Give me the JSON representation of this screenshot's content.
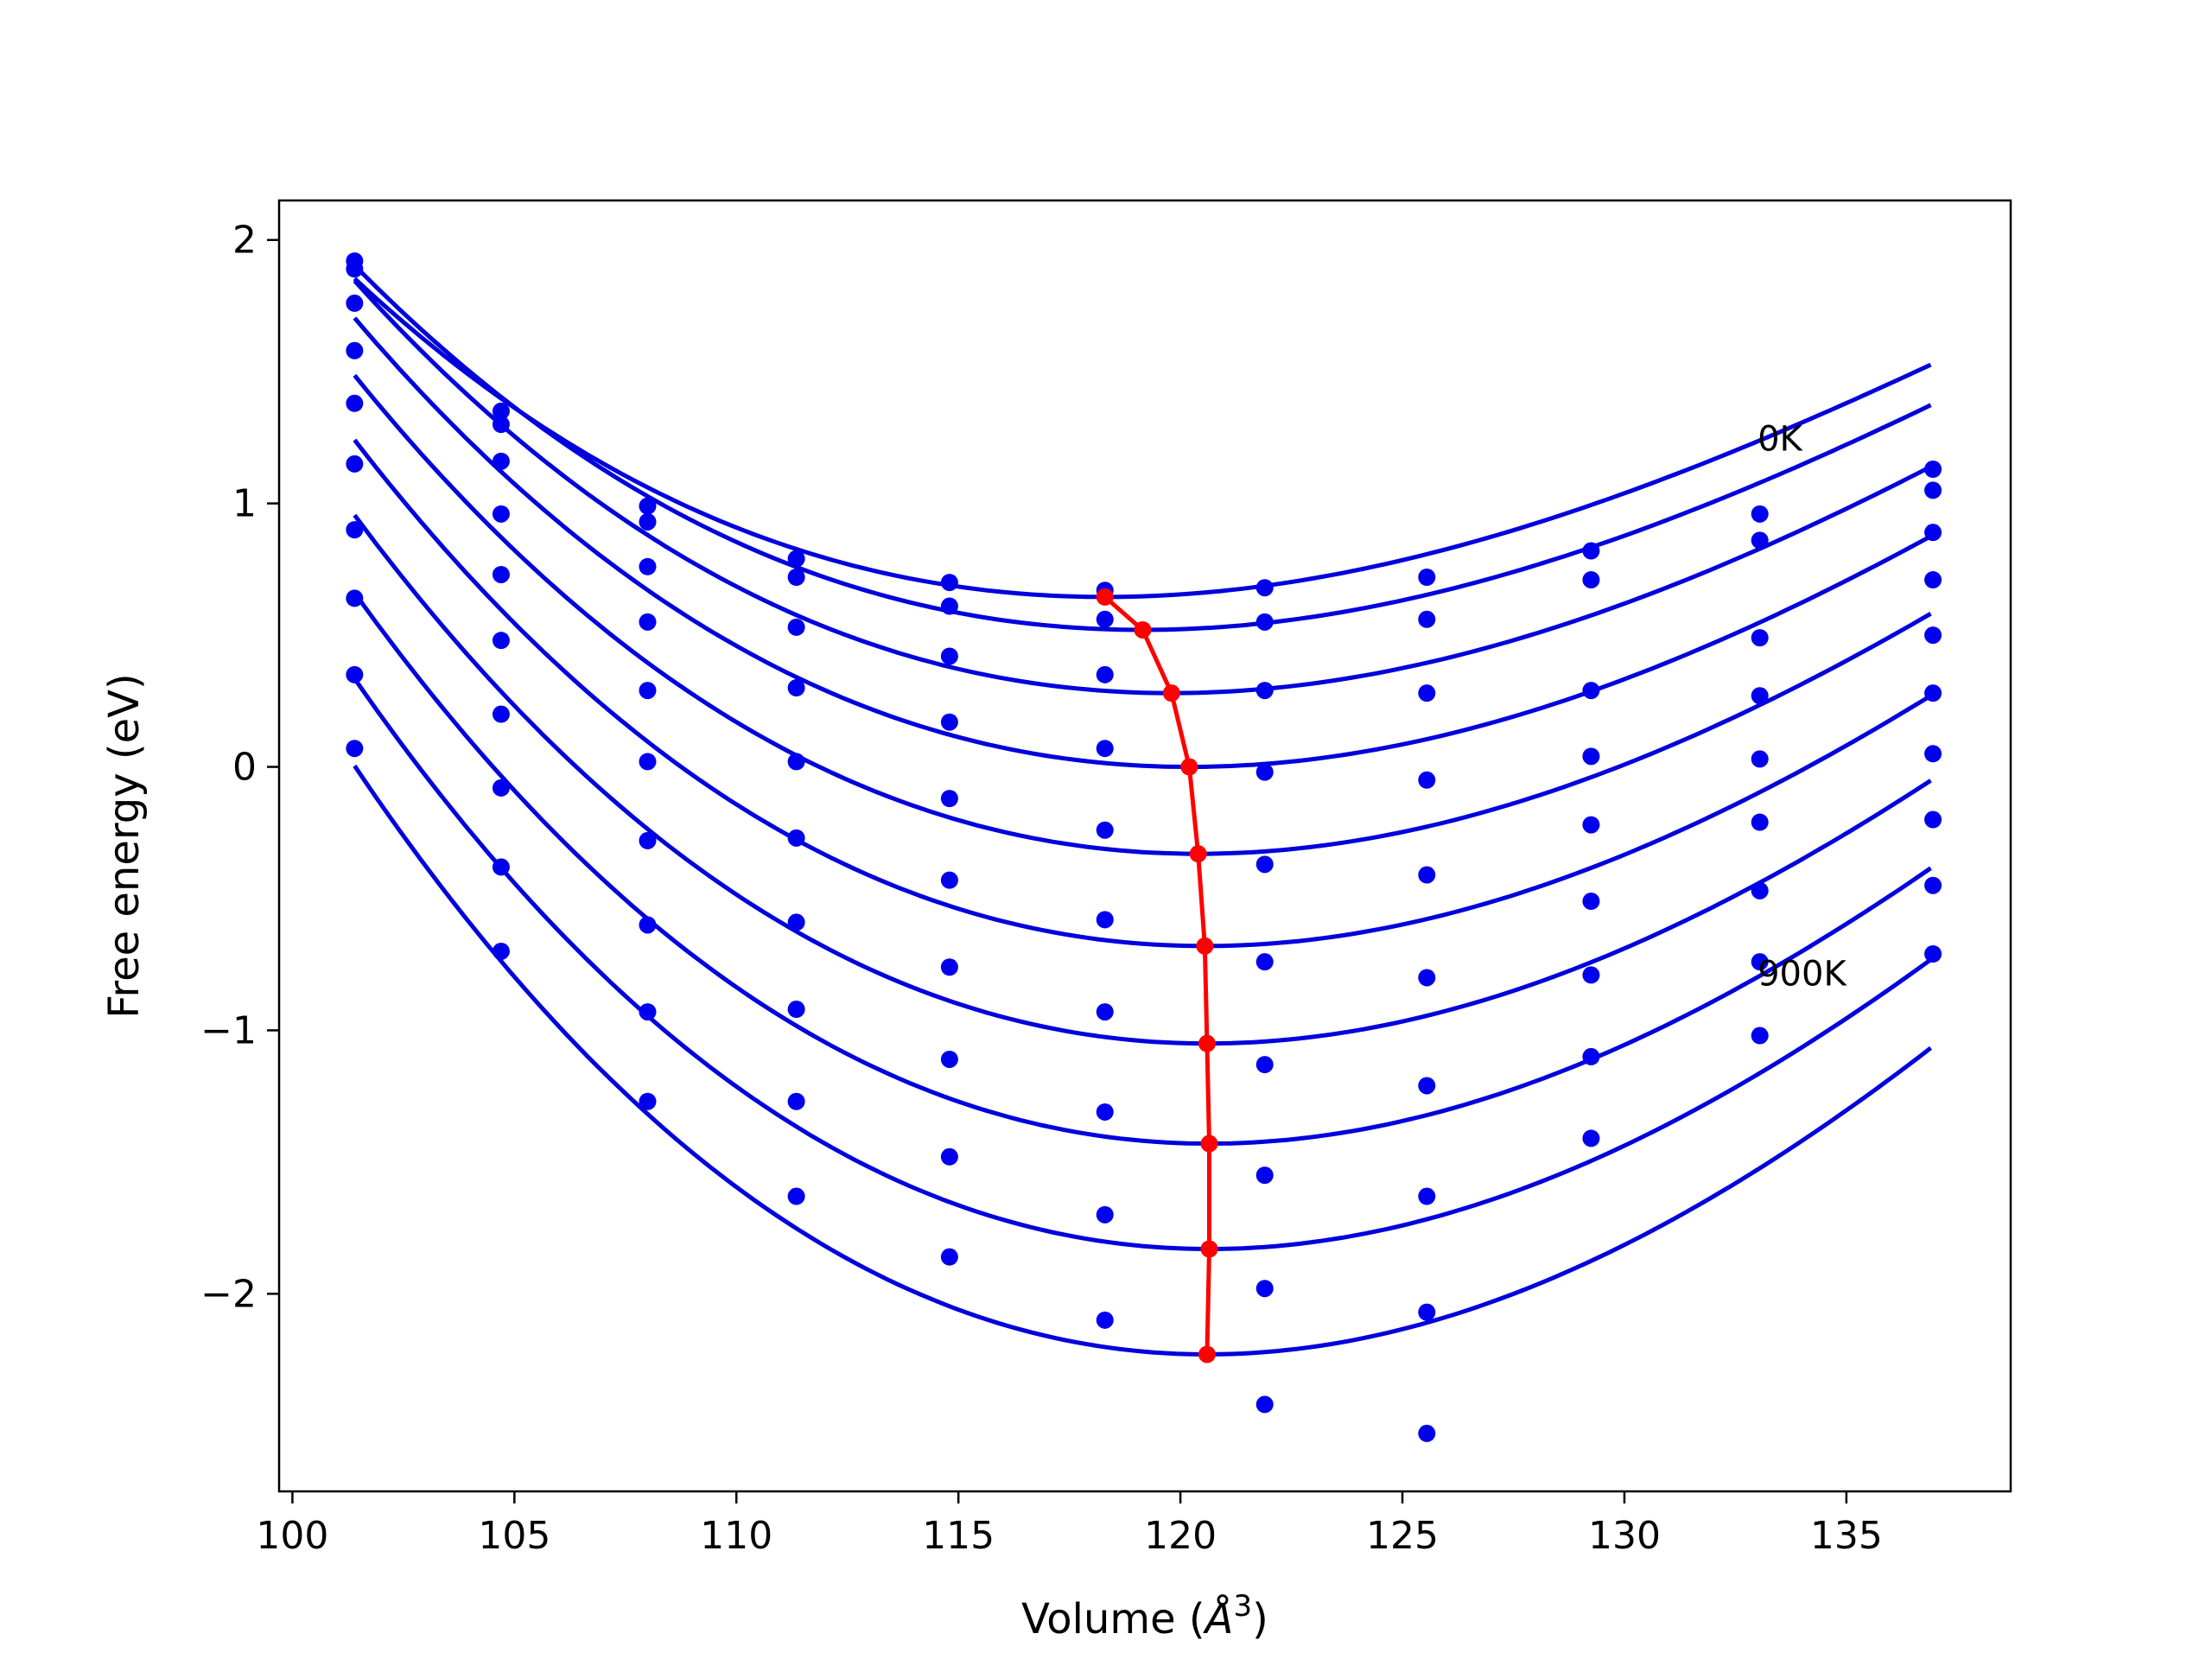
{
  "chart_data": {
    "type": "line",
    "title": "",
    "xlabel_main": "Volume (",
    "xlabel_unit": "Å",
    "xlabel_exp": "3",
    "xlabel_close": ")",
    "ylabel": "Free energy (eV)",
    "xlim": [
      99.7,
      138.7
    ],
    "ylim": [
      -2.75,
      2.15
    ],
    "xticks": [
      100,
      105,
      110,
      115,
      120,
      125,
      130,
      135
    ],
    "yticks": [
      -2,
      -1,
      0,
      1,
      2
    ],
    "ytick_labels": [
      "−2",
      "−1",
      "0",
      "1",
      "2"
    ],
    "annotations": [
      {
        "text": "0K",
        "x": 133.0,
        "y": 1.2
      },
      {
        "text": "900K",
        "x": 133.0,
        "y": -0.83
      }
    ],
    "colors": {
      "curves": "#0000dd",
      "points": "#0000ee",
      "eos_line": "#ff0000"
    },
    "volumes": [
      101.4,
      104.7,
      108.0,
      111.35,
      114.8,
      118.3,
      121.9,
      125.55,
      129.25,
      133.05,
      136.95
    ],
    "series": [
      {
        "temperature_index": 0,
        "points": [
          1.92,
          1.35,
          0.99,
          0.79,
          0.7,
          0.67,
          0.68,
          0.72,
          0.82,
          0.96,
          1.13
        ],
        "fit": {
          "vmin": 118.3,
          "emin": 0.645,
          "a": 0.00343,
          "b": -4.74e-05
        }
      },
      {
        "temperature_index": 1,
        "points": [
          1.89,
          1.3,
          0.93,
          0.72,
          0.61,
          0.56,
          0.55,
          0.56,
          0.71,
          0.86,
          1.05
        ],
        "fit": {
          "vmin": 119.15,
          "emin": 0.52,
          "a": 0.00355,
          "b": -4.74e-05
        }
      },
      {
        "temperature_index": 2,
        "points": [
          1.76,
          1.16,
          0.76,
          0.53,
          0.42,
          0.35,
          0.29,
          0.28,
          0.29,
          0.49,
          0.89
        ],
        "fit": {
          "vmin": 119.8,
          "emin": 0.28,
          "a": 0.00375,
          "b": -4.74e-05
        }
      },
      {
        "temperature_index": 3,
        "points": [
          1.58,
          0.96,
          0.55,
          0.3,
          0.17,
          0.07,
          -0.02,
          -0.05,
          0.04,
          0.27,
          0.71
        ],
        "fit": {
          "vmin": 120.2,
          "emin": 0.0,
          "a": 0.00393,
          "b": -4.74e-05
        }
      },
      {
        "temperature_index": 4,
        "points": [
          1.38,
          0.73,
          0.29,
          0.02,
          -0.12,
          -0.24,
          -0.37,
          -0.41,
          -0.22,
          0.03,
          0.5
        ],
        "fit": {
          "vmin": 120.4,
          "emin": -0.33,
          "a": 0.00413,
          "b": -4.74e-05
        }
      },
      {
        "temperature_index": 5,
        "points": [
          1.15,
          0.48,
          0.02,
          -0.27,
          -0.43,
          -0.58,
          -0.74,
          -0.8,
          -0.51,
          -0.21,
          0.28
        ],
        "fit": {
          "vmin": 120.55,
          "emin": -0.68,
          "a": 0.00433,
          "b": -4.74e-05
        }
      },
      {
        "temperature_index": 6,
        "points": [
          0.9,
          0.2,
          -0.28,
          -0.59,
          -0.76,
          -0.93,
          -1.13,
          -1.21,
          -0.79,
          -0.47,
          0.05
        ],
        "fit": {
          "vmin": 120.6,
          "emin": -1.05,
          "a": 0.00453,
          "b": -4.74e-05
        }
      },
      {
        "temperature_index": 7,
        "points": [
          0.64,
          -0.08,
          -0.6,
          -0.92,
          -1.11,
          -1.31,
          -1.55,
          -1.63,
          -1.1,
          -0.74,
          -0.2
        ],
        "fit": {
          "vmin": 120.65,
          "emin": -1.43,
          "a": 0.00473,
          "b": -4.74e-05
        }
      },
      {
        "temperature_index": 8,
        "points": [
          0.35,
          -0.38,
          -0.93,
          -1.27,
          -1.48,
          -1.7,
          -1.98,
          -2.07,
          -1.41,
          -1.02,
          -0.45
        ],
        "fit": {
          "vmin": 120.65,
          "emin": -1.83,
          "a": 0.00493,
          "b": -4.74e-05
        }
      },
      {
        "temperature_index": 9,
        "points": [
          0.07,
          -0.7,
          -1.27,
          -1.63,
          -1.86,
          -2.1,
          -2.42,
          -2.53,
          null,
          null,
          -0.71
        ],
        "fit": {
          "vmin": 120.6,
          "emin": -2.23,
          "a": 0.00515,
          "b": -4.74e-05
        }
      }
    ],
    "equilibrium_line": {
      "x": [
        118.3,
        119.15,
        119.8,
        120.2,
        120.4,
        120.55,
        120.6,
        120.65,
        120.65,
        120.6
      ],
      "y": [
        0.645,
        0.52,
        0.28,
        0.0,
        -0.33,
        -0.68,
        -1.05,
        -1.43,
        -1.83,
        -2.23
      ]
    },
    "fit_range": [
      101.4,
      136.95
    ]
  }
}
